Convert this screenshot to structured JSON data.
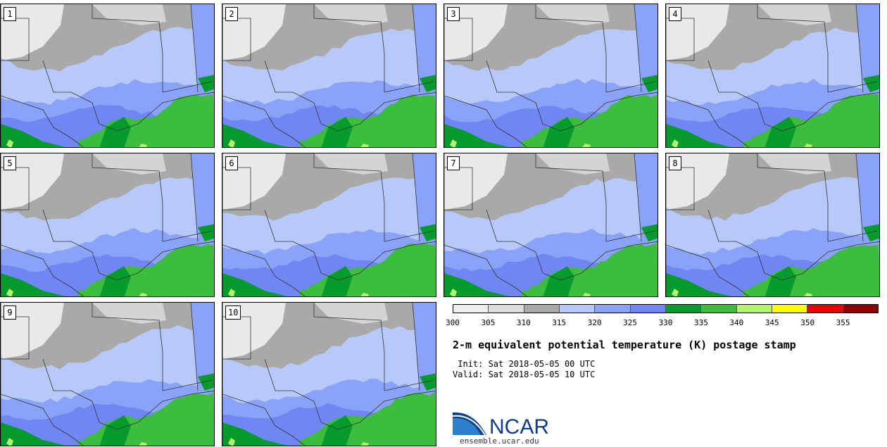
{
  "panels": [
    {
      "label": "1"
    },
    {
      "label": "2"
    },
    {
      "label": "3"
    },
    {
      "label": "4"
    },
    {
      "label": "5"
    },
    {
      "label": "6"
    },
    {
      "label": "7"
    },
    {
      "label": "8"
    },
    {
      "label": "9"
    },
    {
      "label": "10"
    }
  ],
  "map_colors": {
    "very_cold": "#e9e9e9",
    "cold": "#d4d4d4",
    "gray": "#a9a9a9",
    "light_blue": "#b7c9fb",
    "mid_blue": "#8aa3f8",
    "blue": "#6f86f3",
    "dark_green": "#079a2d",
    "green": "#3cbd3c",
    "lime": "#b2f36b",
    "borders": "#333333"
  },
  "colorbar": {
    "ticks": [
      "300",
      "305",
      "310",
      "315",
      "320",
      "325",
      "330",
      "335",
      "340",
      "345",
      "350",
      "355"
    ],
    "colors": [
      "#eeeeee",
      "#dcdcdc",
      "#a9a9a9",
      "#b7c9fb",
      "#8aa3f8",
      "#6f86f3",
      "#079a2d",
      "#3cbd3c",
      "#b2f36b",
      "#ffff00",
      "#e60000",
      "#8b0000"
    ]
  },
  "legend": {
    "title": "2-m equivalent potential temperature (K) postage stamp",
    "init": " Init: Sat 2018-05-05 00 UTC",
    "valid": "Valid: Sat 2018-05-05 10 UTC"
  },
  "logo": {
    "text": "NCAR",
    "url": "ensemble.ucar.edu",
    "colors": {
      "arc_dark": "#0d3f8f",
      "arc_light": "#2f7fcf",
      "text": "#0f3d8c"
    }
  }
}
